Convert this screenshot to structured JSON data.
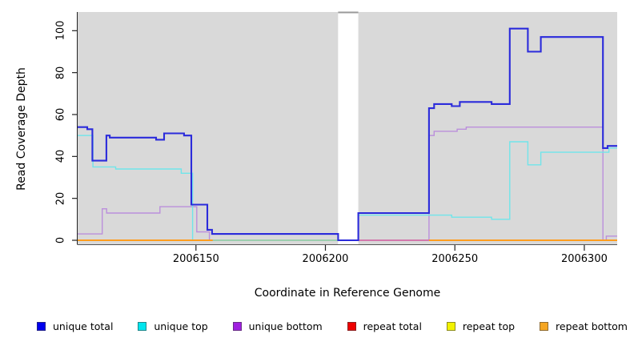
{
  "axes": {
    "x_label": "Coordinate in Reference Genome",
    "y_label": "Read Coverage Depth",
    "x_tick_values": [
      2006150,
      2006200,
      2006250,
      2006300
    ],
    "x_tick_labels": [
      "2006150",
      "2006200",
      "2006250",
      "2006300"
    ],
    "y_tick_values": [
      0,
      20,
      40,
      60,
      80,
      100
    ],
    "y_tick_labels": [
      "0",
      "20",
      "40",
      "60",
      "80",
      "100"
    ],
    "x_range": [
      2006104.3,
      2006312.7
    ],
    "y_range": [
      0,
      110
    ]
  },
  "chart_data": {
    "type": "line",
    "step": true,
    "title": "",
    "xlabel": "Coordinate in Reference Genome",
    "ylabel": "Read Coverage Depth",
    "xlim": [
      2006104.3,
      2006312.7
    ],
    "ylim": [
      0,
      110
    ],
    "grid": false,
    "legend_position": "bottom",
    "panel_background": "#d9d9d9",
    "gap_region": {
      "x_start": 2006204.9,
      "x_end": 2006212.7,
      "color": "#ffffff",
      "top_border": "#999999"
    },
    "series": [
      {
        "name": "unique bottom (left of gap)",
        "legend": "unique bottom",
        "color": "#bb8fdc",
        "width": 1.4,
        "steps": [
          [
            2006104.3,
            3
          ],
          [
            2006113.8,
            15
          ],
          [
            2006115.5,
            13
          ],
          [
            2006136.1,
            16
          ],
          [
            2006150.3,
            4
          ],
          [
            2006155.2,
            0
          ],
          [
            2006204.9,
            0
          ]
        ]
      },
      {
        "name": "unique bottom (right of gap)",
        "legend": "unique bottom",
        "color": "#bb8fdc",
        "width": 1.4,
        "steps": [
          [
            2006212.7,
            0
          ],
          [
            2006240.0,
            50
          ],
          [
            2006242.0,
            52
          ],
          [
            2006250.9,
            53
          ],
          [
            2006254.4,
            54
          ],
          [
            2006307.2,
            0
          ],
          [
            2006308.5,
            2
          ],
          [
            2006312.7,
            2
          ]
        ]
      },
      {
        "name": "unique top (left of gap)",
        "legend": "unique top",
        "color": "#70e5ea",
        "width": 1.4,
        "steps": [
          [
            2006104.3,
            50
          ],
          [
            2006110.2,
            35
          ],
          [
            2006119.0,
            34
          ],
          [
            2006144.3,
            32
          ],
          [
            2006148.7,
            0
          ],
          [
            2006204.9,
            0
          ]
        ]
      },
      {
        "name": "unique top (right of gap)",
        "legend": "unique top",
        "color": "#70e5ea",
        "width": 1.4,
        "steps": [
          [
            2006212.7,
            12
          ],
          [
            2006248.8,
            11
          ],
          [
            2006264.2,
            10
          ],
          [
            2006271.2,
            47
          ],
          [
            2006278.2,
            36
          ],
          [
            2006283.2,
            42
          ],
          [
            2006309.5,
            44
          ],
          [
            2006312.7,
            44
          ]
        ]
      },
      {
        "name": "repeat top (visible segment)",
        "legend": "repeat top",
        "color": "#9ccf9c",
        "width": 1.6,
        "steps": [
          [
            2006156.5,
            0
          ],
          [
            2006204.9,
            0
          ]
        ]
      },
      {
        "name": "repeat total (visible segment)",
        "legend": "repeat total",
        "color": "#d4649c",
        "width": 1.6,
        "steps": [
          [
            2006212.7,
            0
          ],
          [
            2006240.0,
            0
          ]
        ]
      },
      {
        "name": "unique total",
        "legend": "unique total",
        "color": "#2b2bdb",
        "width": 2.1,
        "steps": [
          [
            2006104.3,
            54
          ],
          [
            2006108.0,
            53
          ],
          [
            2006110.0,
            38
          ],
          [
            2006115.4,
            50
          ],
          [
            2006116.7,
            49
          ],
          [
            2006134.6,
            48
          ],
          [
            2006137.7,
            51
          ],
          [
            2006145.4,
            50
          ],
          [
            2006148.2,
            17
          ],
          [
            2006154.4,
            5
          ],
          [
            2006156.2,
            3
          ],
          [
            2006204.9,
            0
          ],
          [
            2006212.7,
            13
          ],
          [
            2006240.0,
            63
          ],
          [
            2006242.0,
            65
          ],
          [
            2006248.8,
            64
          ],
          [
            2006251.9,
            66
          ],
          [
            2006264.2,
            65
          ],
          [
            2006271.2,
            101
          ],
          [
            2006278.2,
            90
          ],
          [
            2006283.2,
            97
          ],
          [
            2006307.2,
            44
          ],
          [
            2006309.0,
            45
          ],
          [
            2006312.7,
            45
          ]
        ]
      },
      {
        "name": "repeat bottom (left segment)",
        "legend": "repeat bottom",
        "color": "#ff9d1e",
        "width": 2,
        "steps": [
          [
            2006104.3,
            0
          ],
          [
            2006156.5,
            0
          ]
        ]
      },
      {
        "name": "repeat bottom (right segment)",
        "legend": "repeat bottom",
        "color": "#ff9d1e",
        "width": 2,
        "steps": [
          [
            2006240.0,
            0
          ],
          [
            2006312.7,
            0
          ]
        ]
      }
    ]
  },
  "legend": {
    "items": [
      {
        "label": "unique total",
        "color": "#0000ee"
      },
      {
        "label": "unique top",
        "color": "#00e5ee"
      },
      {
        "label": "unique bottom",
        "color": "#a020e0"
      },
      {
        "label": "repeat total",
        "color": "#ee0000"
      },
      {
        "label": "repeat top",
        "color": "#f2f200"
      },
      {
        "label": "repeat bottom",
        "color": "#f5a623"
      }
    ]
  }
}
